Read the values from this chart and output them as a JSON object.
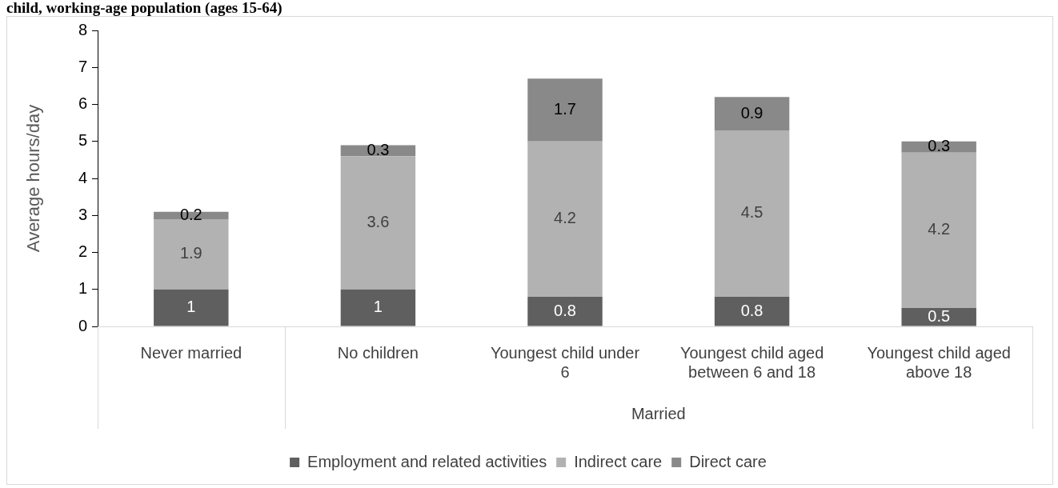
{
  "chart_data": {
    "type": "bar",
    "title": "child, working-age population (ages 15-64)",
    "ylabel": "Average hours/day",
    "categories": [
      "Never married",
      "No children",
      "Youngest child under 6",
      "Youngest child aged between 6 and 18",
      "Youngest child aged above 18"
    ],
    "series": [
      {
        "name": "Employment and related activities",
        "color": "#5f5f5f",
        "values": [
          1,
          1,
          0.8,
          0.8,
          0.5
        ]
      },
      {
        "name": "Indirect care",
        "color": "#b2b2b2",
        "values": [
          1.9,
          3.6,
          4.2,
          4.5,
          4.2
        ]
      },
      {
        "name": "Direct care",
        "color": "#898989",
        "values": [
          0.2,
          0.3,
          1.7,
          0.9,
          0.3
        ]
      }
    ],
    "stacked": true,
    "ylim": [
      0,
      8
    ],
    "yticks": [
      0,
      1,
      2,
      3,
      4,
      5,
      6,
      7,
      8
    ],
    "data_labels": true,
    "legend": "bottom",
    "annotations": [
      "Married"
    ]
  }
}
